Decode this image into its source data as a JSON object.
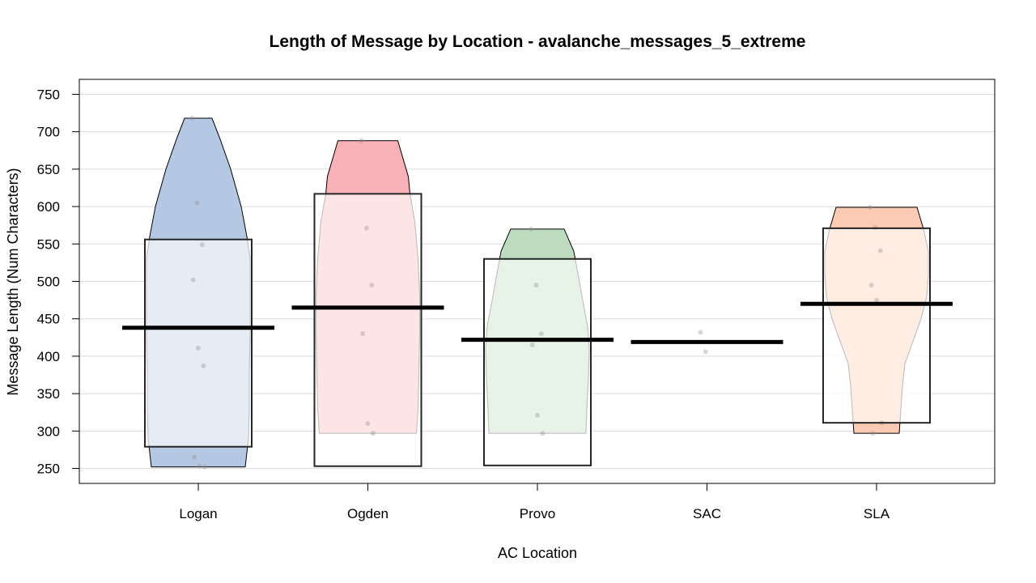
{
  "chart_data": {
    "type": "pirateplot",
    "title": "Length of Message by Location - avalanche_messages_5_extreme",
    "xlabel": "AC Location",
    "ylabel": "Message Length (Num Characters)",
    "ylim": [
      230,
      770
    ],
    "y_ticks": [
      250,
      300,
      350,
      400,
      450,
      500,
      550,
      600,
      650,
      700,
      750
    ],
    "grid": true,
    "categories": [
      "Logan",
      "Ogden",
      "Provo",
      "SAC",
      "SLA"
    ],
    "groups": [
      {
        "name": "Logan",
        "color": "#b5c8e3",
        "mean": 438,
        "box_low": 279,
        "box_high": 556,
        "points": [
          718,
          605,
          549,
          502,
          411,
          387,
          265,
          253,
          252
        ],
        "violin": [
          [
            252,
            58
          ],
          [
            290,
            62
          ],
          [
            330,
            63
          ],
          [
            380,
            63
          ],
          [
            430,
            64
          ],
          [
            480,
            64
          ],
          [
            530,
            64
          ],
          [
            560,
            60
          ],
          [
            600,
            53
          ],
          [
            650,
            40
          ],
          [
            690,
            27
          ],
          [
            718,
            17
          ]
        ]
      },
      {
        "name": "Ogden",
        "color": "#f8b1b6",
        "mean": 465,
        "box_low": 253,
        "box_high": 617,
        "points": [
          688,
          571,
          495,
          430,
          310,
          297
        ],
        "violin": [
          [
            297,
            60
          ],
          [
            330,
            62
          ],
          [
            380,
            63
          ],
          [
            430,
            64
          ],
          [
            480,
            64
          ],
          [
            530,
            62
          ],
          [
            580,
            58
          ],
          [
            617,
            52
          ],
          [
            640,
            50
          ],
          [
            688,
            37
          ]
        ]
      },
      {
        "name": "Provo",
        "color": "#bcdbbf",
        "mean": 422,
        "box_low": 254,
        "box_high": 530,
        "points": [
          570,
          495,
          430,
          415,
          321,
          297
        ],
        "violin": [
          [
            297,
            60
          ],
          [
            330,
            61
          ],
          [
            370,
            63
          ],
          [
            410,
            64
          ],
          [
            440,
            62
          ],
          [
            480,
            55
          ],
          [
            510,
            50
          ],
          [
            540,
            45
          ],
          [
            570,
            33
          ]
        ]
      },
      {
        "name": "SAC",
        "color": "#cccccc",
        "mean": 419,
        "box_low": null,
        "box_high": null,
        "points": [
          432,
          406
        ],
        "violin": []
      },
      {
        "name": "SLA",
        "color": "#fdcbb3",
        "mean": 470,
        "box_low": 311,
        "box_high": 571,
        "points": [
          599,
          572,
          541,
          495,
          475,
          311,
          297
        ],
        "violin": [
          [
            297,
            28
          ],
          [
            330,
            30
          ],
          [
            360,
            32
          ],
          [
            390,
            35
          ],
          [
            420,
            45
          ],
          [
            450,
            55
          ],
          [
            480,
            62
          ],
          [
            510,
            64
          ],
          [
            540,
            64
          ],
          [
            570,
            58
          ],
          [
            599,
            50
          ]
        ]
      }
    ]
  }
}
